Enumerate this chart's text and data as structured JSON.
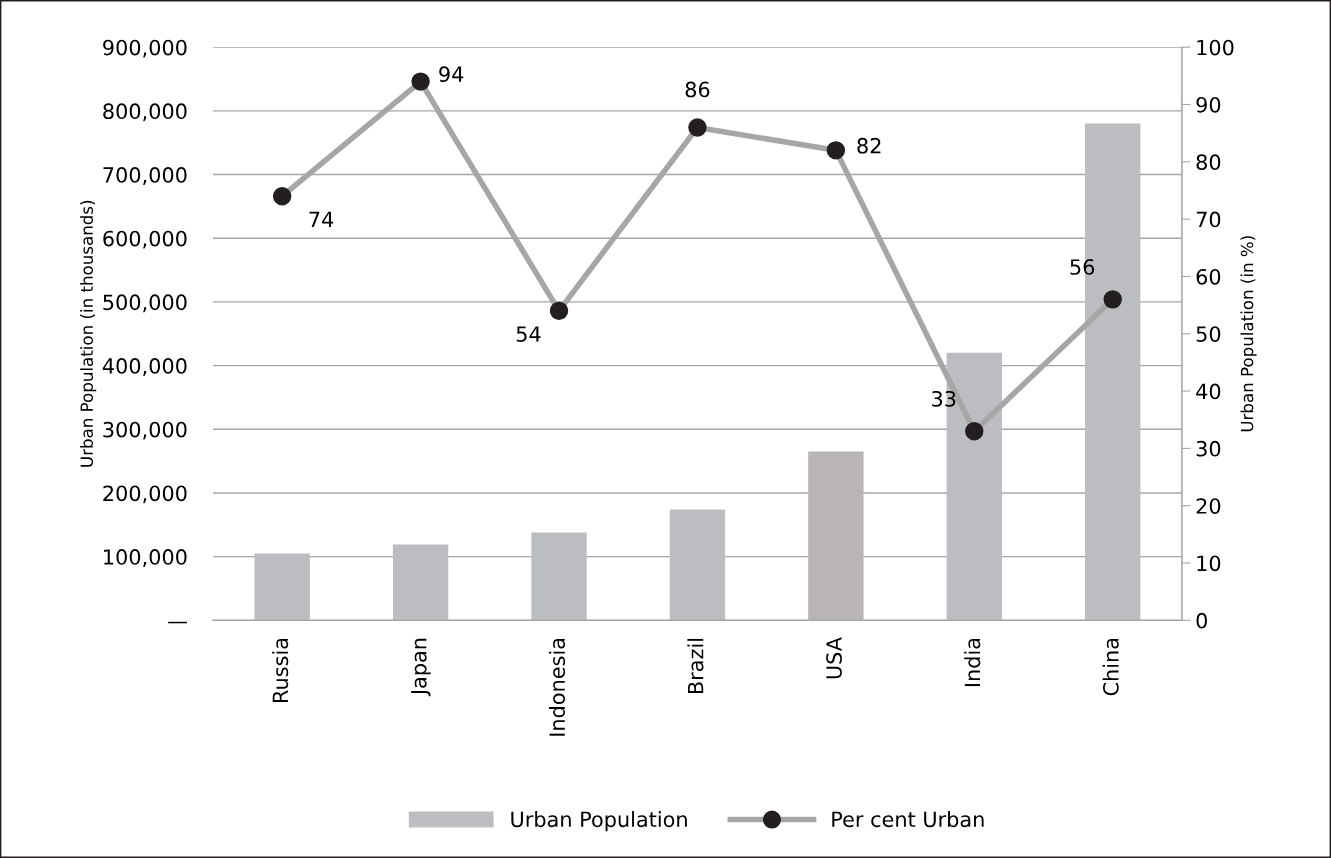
{
  "chart_data": {
    "type": "bar",
    "categories": [
      "Russia",
      "Japan",
      "Indonesia",
      "Brazil",
      "USA",
      "India",
      "China"
    ],
    "ylabel": "Urban Population (in thousands)",
    "y2label": "Urban Population (in %)",
    "ylim": [
      0,
      900000
    ],
    "yticks": [
      {
        "value": 0,
        "label": "—"
      },
      {
        "value": 100000,
        "label": "100,000"
      },
      {
        "value": 200000,
        "label": "200,000"
      },
      {
        "value": 300000,
        "label": "300,000"
      },
      {
        "value": 400000,
        "label": "400,000"
      },
      {
        "value": 500000,
        "label": "500,000"
      },
      {
        "value": 600000,
        "label": "600,000"
      },
      {
        "value": 700000,
        "label": "700,000"
      },
      {
        "value": 800000,
        "label": "800,000"
      },
      {
        "value": 900000,
        "label": "900,000"
      }
    ],
    "y2lim": [
      0,
      100
    ],
    "y2ticks": [
      0,
      10,
      20,
      30,
      40,
      50,
      60,
      70,
      80,
      90,
      100
    ],
    "grid": "y",
    "legend": "bottom",
    "series": [
      {
        "name": "Urban Population",
        "colors": [
          "#bcbdc1",
          "#bcbdc1",
          "#bcbdc1",
          "#bcbdc1",
          "#b9b5b6",
          "#bcbdc1",
          "#bcbdc1"
        ],
        "values": [
          105000,
          119000,
          138000,
          174000,
          265000,
          420000,
          780000
        ]
      },
      {
        "name": "Per cent Urban",
        "type": "line",
        "axis": "y2",
        "color": "#a6a6a6",
        "colors": [
          "#231f20",
          "#231f20",
          "#231f20",
          "#231f20",
          "#231f20",
          "#231f20",
          "#231f20"
        ],
        "marker": "circle",
        "data_labels": true,
        "values": [
          74,
          94,
          54,
          86,
          82,
          33,
          56
        ]
      }
    ]
  }
}
